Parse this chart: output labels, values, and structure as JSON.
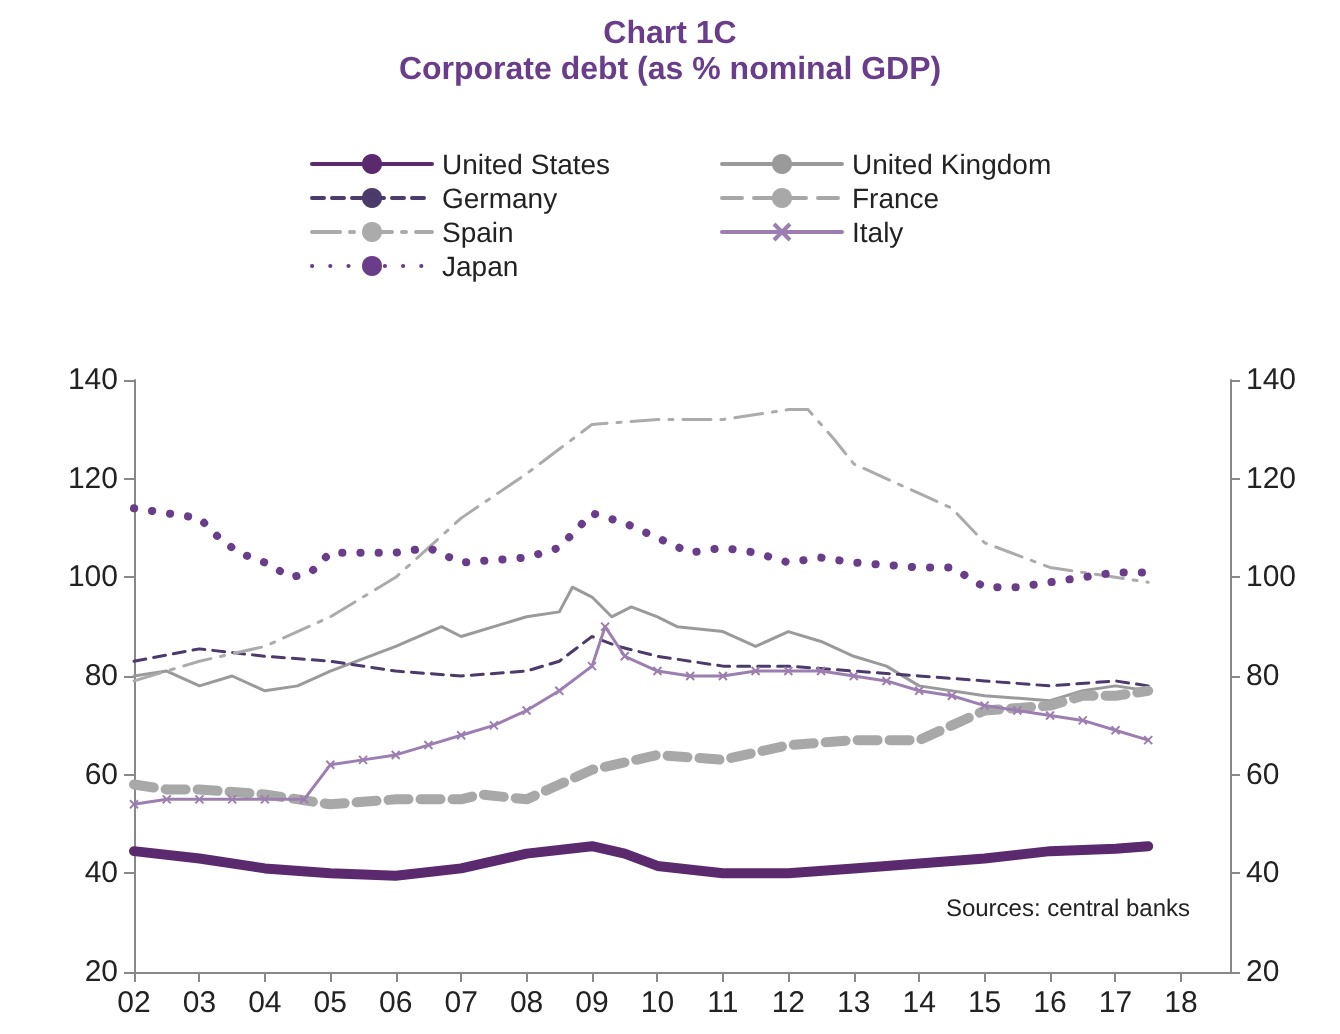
{
  "chart_data": {
    "type": "line",
    "title": "Chart 1C",
    "subtitle": "Corporate debt (as % nominal GDP)",
    "annotations": [
      "Sources: central banks"
    ],
    "legend": "top",
    "grid": false,
    "xlim": [
      2,
      18.75
    ],
    "xticks": [
      {
        "value": 2,
        "label": "02"
      },
      {
        "value": 3,
        "label": "03"
      },
      {
        "value": 4,
        "label": "04"
      },
      {
        "value": 5,
        "label": "05"
      },
      {
        "value": 6,
        "label": "06"
      },
      {
        "value": 7,
        "label": "07"
      },
      {
        "value": 8,
        "label": "08"
      },
      {
        "value": 9,
        "label": "09"
      },
      {
        "value": 10,
        "label": "10"
      },
      {
        "value": 11,
        "label": "11"
      },
      {
        "value": 12,
        "label": "12"
      },
      {
        "value": 13,
        "label": "13"
      },
      {
        "value": 14,
        "label": "14"
      },
      {
        "value": 15,
        "label": "15"
      },
      {
        "value": 16,
        "label": "16"
      },
      {
        "value": 17,
        "label": "17"
      },
      {
        "value": 18,
        "label": "18"
      }
    ],
    "ylim": [
      20,
      140
    ],
    "yticks": [
      20,
      40,
      60,
      80,
      100,
      120,
      140
    ],
    "y2lim": [
      20,
      140
    ],
    "y2ticks": [
      20,
      40,
      60,
      80,
      100,
      120,
      140
    ],
    "series": [
      {
        "name": "United States",
        "color": "#5b2a6e",
        "line_style": "solid",
        "x": [
          2,
          3,
          4,
          5,
          6,
          7,
          8,
          9,
          9.5,
          10,
          11,
          12,
          13,
          14,
          15,
          16,
          17,
          17.5
        ],
        "values": [
          44.5,
          43,
          41,
          40,
          39.5,
          41,
          44,
          45.5,
          44,
          41.5,
          40,
          40,
          41,
          42,
          43,
          44.5,
          45,
          45.5
        ]
      },
      {
        "name": "United Kingdom",
        "color": "#9a9a9a",
        "line_style": "solid",
        "x": [
          2,
          2.5,
          3,
          3.5,
          4,
          4.5,
          5,
          6,
          6.7,
          7,
          8,
          8.5,
          8.7,
          9,
          9.3,
          9.6,
          10,
          10.3,
          11,
          11.5,
          12,
          12.5,
          13,
          13.5,
          14,
          15,
          16,
          16.5,
          17,
          17.5
        ],
        "values": [
          80,
          81,
          78,
          80,
          77,
          78,
          81,
          86,
          90,
          88,
          92,
          93,
          98,
          96,
          92,
          94,
          92,
          90,
          89,
          86,
          89,
          87,
          84,
          82,
          78,
          76,
          75,
          77,
          78,
          77
        ]
      },
      {
        "name": "Germany",
        "color": "#4b3a6a",
        "line_style": "dashed",
        "x": [
          2,
          3,
          4,
          5,
          6,
          7,
          8,
          8.5,
          9,
          9.4,
          10,
          11,
          12,
          13,
          14,
          15,
          16,
          17,
          17.5
        ],
        "values": [
          83,
          85.5,
          84,
          83,
          81,
          80,
          81,
          83,
          88,
          86,
          84,
          82,
          82,
          81,
          80,
          79,
          78,
          79,
          78
        ]
      },
      {
        "name": "France",
        "color": "#a8a8a8",
        "line_style": "dashed",
        "x": [
          2,
          2.5,
          3,
          4,
          5,
          6,
          7,
          7.3,
          8,
          8.5,
          9,
          10,
          11,
          12,
          13,
          14,
          14.5,
          15,
          16,
          16.5,
          17,
          17.5
        ],
        "values": [
          58,
          57,
          57,
          56,
          54,
          55,
          55,
          56,
          55,
          58,
          61,
          64,
          63,
          66,
          67,
          67,
          70,
          73,
          74,
          76,
          76,
          77
        ]
      },
      {
        "name": "Spain",
        "color": "#ababab",
        "line_style": "dashed",
        "x": [
          2,
          3,
          4,
          5,
          6,
          7,
          8,
          8.5,
          9,
          10,
          11,
          12,
          12.3,
          12.7,
          13,
          14,
          14.5,
          15,
          16,
          17,
          17.5
        ],
        "values": [
          79,
          83,
          86,
          92,
          100,
          112,
          121,
          126,
          131,
          132,
          132,
          134,
          134,
          128,
          123,
          117,
          114,
          107,
          102,
          100,
          99
        ]
      },
      {
        "name": "Italy",
        "color": "#9c7fb0",
        "line_style": "solid",
        "marker": "cross",
        "x": [
          2,
          2.5,
          3,
          3.5,
          4,
          4.6,
          5,
          5.5,
          6,
          6.5,
          7,
          7.5,
          8,
          8.5,
          9,
          9.2,
          9.5,
          10,
          10.5,
          11,
          11.5,
          12,
          12.5,
          13,
          13.5,
          14,
          14.5,
          15,
          15.5,
          16,
          16.5,
          17,
          17.5
        ],
        "values": [
          54,
          55,
          55,
          55,
          55,
          55,
          62,
          63,
          64,
          66,
          68,
          70,
          73,
          77,
          82,
          90,
          84,
          81,
          80,
          80,
          81,
          81,
          81,
          80,
          79,
          77,
          76,
          74,
          73,
          72,
          71,
          69,
          67
        ]
      },
      {
        "name": "Japan",
        "color": "#6a3d8a",
        "line_style": "dotted",
        "x": [
          2,
          2.5,
          3,
          3.3,
          3.6,
          4,
          4.4,
          4.7,
          5,
          6,
          6.5,
          7,
          8,
          8.5,
          9,
          9.5,
          10,
          10.5,
          11,
          11.5,
          12,
          12.5,
          13,
          14,
          14.5,
          15,
          15.5,
          16,
          16.5,
          17,
          17.5
        ],
        "values": [
          114,
          113,
          112,
          108,
          105,
          103,
          100,
          101,
          105,
          105,
          106,
          103,
          104,
          106,
          113,
          111,
          108,
          105,
          106,
          105,
          103,
          104,
          103,
          102,
          102,
          98,
          98,
          99,
          100,
          101,
          101
        ]
      }
    ]
  }
}
